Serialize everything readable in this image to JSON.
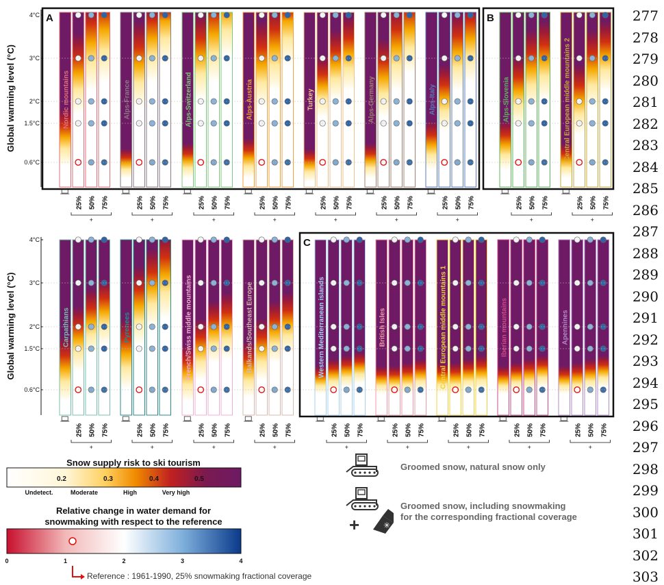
{
  "chart_data": {
    "type": "heatmap",
    "y_axis_label": "Global warming level (°C)",
    "y_ticks": [
      "4°C",
      "3°C",
      "2°C",
      "1.5°C",
      "0.6°C"
    ],
    "y_values": [
      4,
      3,
      2,
      1.5,
      0.6
    ],
    "scenario_labels": [
      "25%",
      "50%",
      "75%"
    ],
    "scenario_group_label": "+",
    "panels": [
      {
        "label": "A",
        "regions": [
          "Nordic mountains",
          "Alps-France",
          "Alps-Switzerland",
          "Alps-Austria",
          "Turkey",
          "Alps-Germany",
          "Alps-Italy"
        ]
      },
      {
        "label": "B",
        "regions": [
          "Alps-Slovenia",
          "Central European middle mountains 2"
        ]
      },
      {
        "label": "",
        "regions": [
          "Carpathians",
          "Pyrenees",
          "French/Swiss middle mountains",
          "Balkands/Southeast Europe"
        ]
      },
      {
        "label": "C",
        "regions": [
          "Western Mediterranean islands",
          "British Isles",
          "Central European middle mountains 1",
          "Iberian mountains",
          "Apennines"
        ]
      }
    ],
    "region_colors": {
      "Nordic mountains": "#e0707a",
      "Alps-France": "#8a7a86",
      "Alps-Switzerland": "#7cc87c",
      "Alps-Austria": "#f0a040",
      "Turkey": "#f0c090",
      "Alps-Germany": "#a08070",
      "Alps-Italy": "#5a7ab8",
      "Alps-Slovenia": "#5cb45c",
      "Central European middle mountains 2": "#c8a840",
      "Carpathians": "#7ac0b0",
      "Pyrenees": "#2a8a8a",
      "French/Swiss middle mountains": "#f0b0d0",
      "Balkands/Southeast Europe": "#d8b8b0",
      "Western Mediterranean islands": "#a8d0f0",
      "British Isles": "#f09aa8",
      "Central European middle mountains 1": "#f0d040",
      "Iberian mountains": "#d04a8a",
      "Apennines": "#b08ac8"
    },
    "risk_colorbar": {
      "title": "Snow supply risk to ski tourism",
      "ticks": [
        "0.2",
        "0.3",
        "0.4",
        "0.5"
      ],
      "categories": [
        "Undetect.",
        "Moderate",
        "High",
        "Very high"
      ],
      "colors": [
        "#ffffff",
        "#ffe9a0",
        "#f5a800",
        "#d03010",
        "#9a1a3a",
        "#6e1a64"
      ]
    },
    "water_colorbar": {
      "title_line1": "Relative change in water demand for",
      "title_line2": "snowmaking with respect to the reference",
      "ticks": [
        "0",
        "1",
        "2",
        "3",
        "4"
      ],
      "range": [
        0,
        4
      ],
      "colors": [
        "#c8102e",
        "#f2b8b8",
        "#ffffff",
        "#7fb0dc",
        "#0a3a8a"
      ]
    },
    "reference_note": "Reference : 1961-1990, 25% snowmaking fractional coverage",
    "legend_items": [
      {
        "label": "Groomed snow, natural snow only"
      },
      {
        "label_line1": "Groomed snow, including snowmaking",
        "label_line2": "for the corresponding fractional coverage"
      }
    ]
  },
  "line_numbers": [
    "277",
    "278",
    "279",
    "280",
    "281",
    "282",
    "283",
    "284",
    "285",
    "286",
    "287",
    "288",
    "289",
    "290",
    "291",
    "292",
    "293",
    "294",
    "295",
    "296",
    "297",
    "298",
    "299",
    "300",
    "301",
    "302",
    "303"
  ]
}
